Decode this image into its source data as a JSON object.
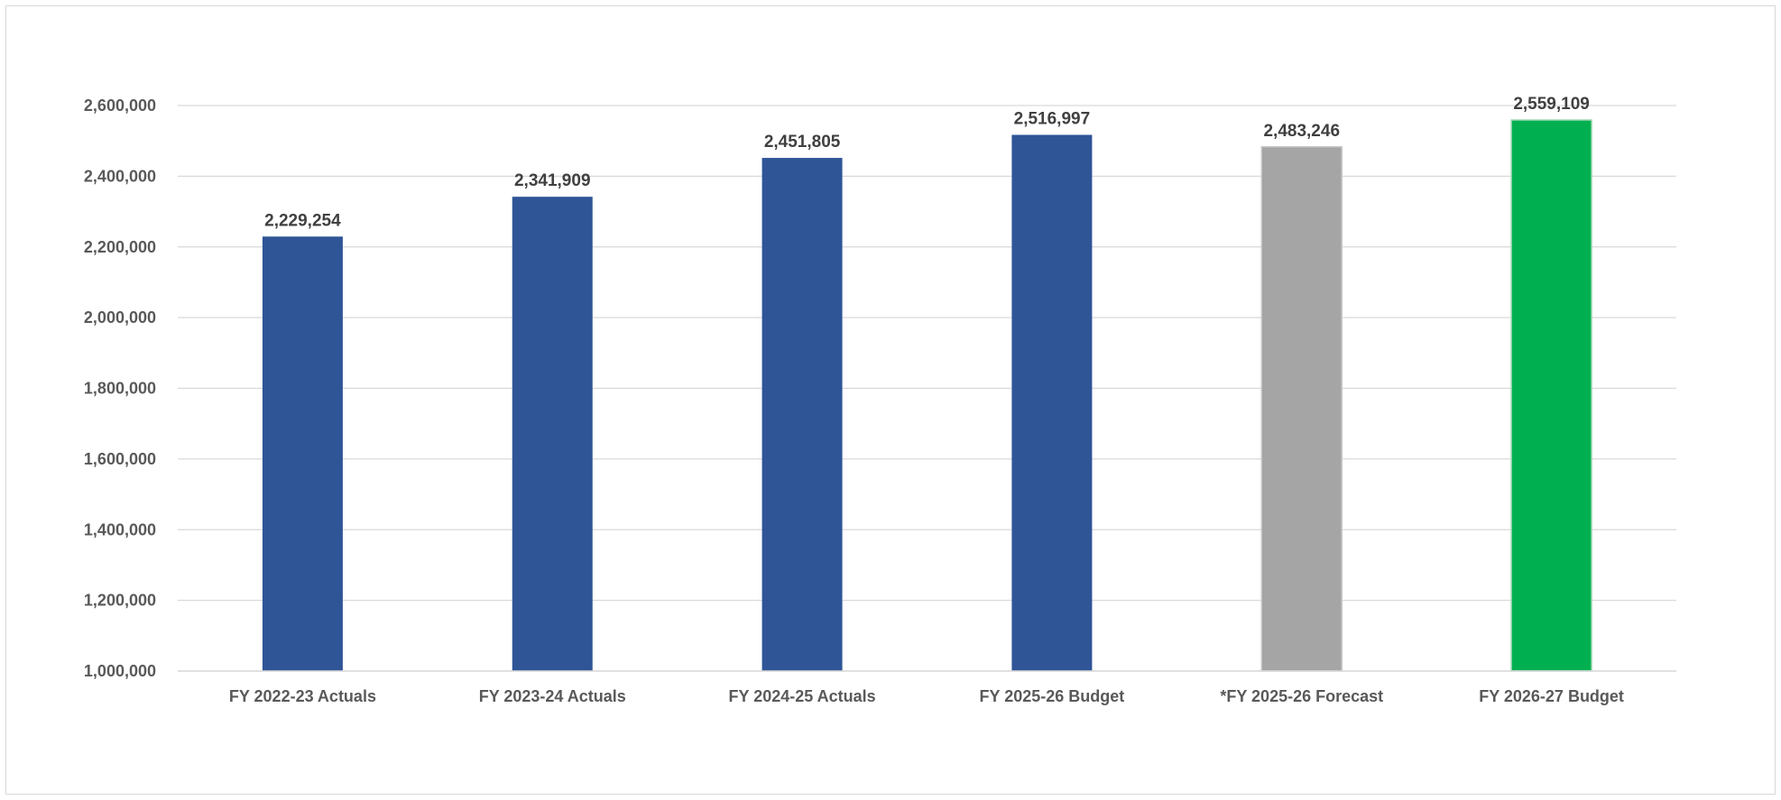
{
  "chart_data": {
    "type": "bar",
    "title": "",
    "xlabel": "",
    "ylabel": "",
    "categories": [
      "FY 2022-23 Actuals",
      "FY 2023-24 Actuals",
      "FY 2024-25 Actuals",
      "FY 2025-26 Budget",
      "*FY 2025-26 Forecast",
      "FY 2026-27 Budget"
    ],
    "values": [
      2229254,
      2341909,
      2451805,
      2516997,
      2483246,
      2559109
    ],
    "data_labels": [
      "2,229,254",
      "2,341,909",
      "2,451,805",
      "2,516,997",
      "2,483,246",
      "2,559,109"
    ],
    "bar_colors": [
      "#2f5597",
      "#2f5597",
      "#2f5597",
      "#2f5597",
      "#a5a5a5",
      "#00b050"
    ],
    "ylim": [
      1000000,
      2600000
    ],
    "yticks": [
      1000000,
      1200000,
      1400000,
      1600000,
      1800000,
      2000000,
      2200000,
      2400000,
      2600000
    ],
    "ytick_labels": [
      "1,000,000",
      "1,200,000",
      "1,400,000",
      "1,600,000",
      "1,800,000",
      "2,000,000",
      "2,200,000",
      "2,400,000",
      "2,600,000"
    ],
    "grid": true,
    "legend": "none"
  }
}
